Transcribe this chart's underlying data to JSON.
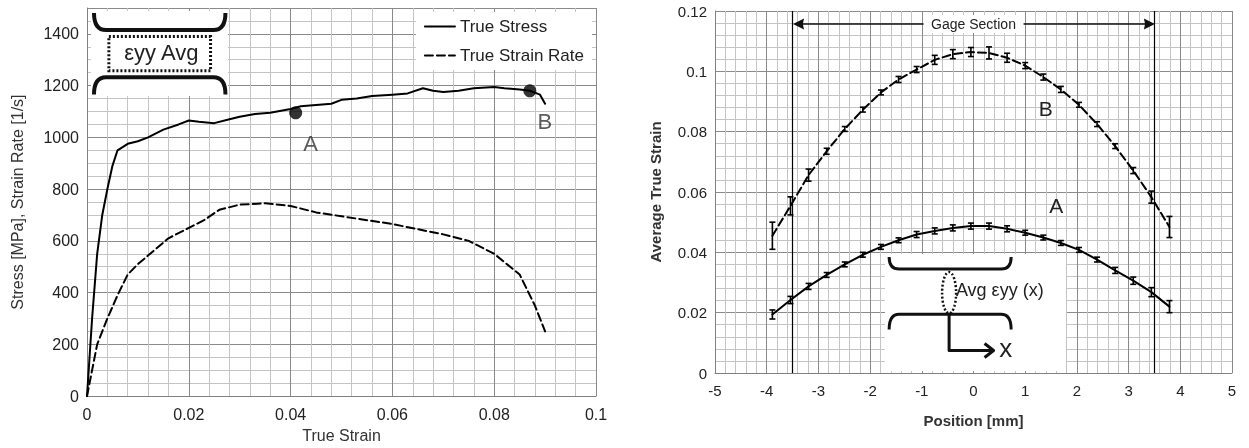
{
  "chart_data": [
    {
      "type": "line",
      "xlabel": "True Strain",
      "ylabel": "Stress [MPa], Strain Rate [1/s]",
      "xlim": [
        0,
        0.1
      ],
      "xticks": [
        0,
        0.02,
        0.04,
        0.06,
        0.08,
        0.1
      ],
      "ylim": [
        0,
        1500
      ],
      "yticks": [
        0,
        200,
        400,
        600,
        800,
        1000,
        1200,
        1400
      ],
      "grid": true,
      "legend": "top right",
      "marker": "none",
      "series": [
        {
          "name": "True Stress",
          "color": "#000000",
          "line_style": "solid",
          "x": [
            0,
            0.001,
            0.002,
            0.003,
            0.004,
            0.005,
            0.006,
            0.008,
            0.01,
            0.012,
            0.015,
            0.018,
            0.02,
            0.022,
            0.025,
            0.028,
            0.03,
            0.033,
            0.036,
            0.04,
            0.042,
            0.045,
            0.048,
            0.05,
            0.053,
            0.056,
            0.06,
            0.063,
            0.066,
            0.068,
            0.07,
            0.073,
            0.076,
            0.08,
            0.082,
            0.085,
            0.087,
            0.089,
            0.09
          ],
          "values": [
            0,
            300,
            550,
            700,
            800,
            890,
            950,
            975,
            985,
            1000,
            1030,
            1050,
            1065,
            1060,
            1055,
            1070,
            1080,
            1090,
            1095,
            1110,
            1120,
            1125,
            1130,
            1145,
            1150,
            1160,
            1165,
            1170,
            1190,
            1180,
            1175,
            1180,
            1190,
            1195,
            1190,
            1185,
            1180,
            1165,
            1130
          ]
        },
        {
          "name": "True Strain Rate",
          "color": "#000000",
          "line_style": "dashed",
          "x": [
            0,
            0.001,
            0.002,
            0.004,
            0.006,
            0.008,
            0.01,
            0.013,
            0.016,
            0.02,
            0.023,
            0.026,
            0.03,
            0.035,
            0.04,
            0.045,
            0.05,
            0.055,
            0.06,
            0.065,
            0.07,
            0.075,
            0.08,
            0.085,
            0.088,
            0.09
          ],
          "values": [
            0,
            100,
            200,
            300,
            390,
            470,
            510,
            560,
            610,
            650,
            680,
            720,
            740,
            745,
            735,
            710,
            695,
            680,
            665,
            645,
            625,
            600,
            550,
            470,
            350,
            250
          ]
        },
        {
          "type": "scatter",
          "color": "#000000",
          "marker": "circle",
          "x": [
            0.041,
            0.087
          ],
          "values": [
            1095,
            1180
          ]
        }
      ],
      "annotations": [
        {
          "text": "A",
          "x": 0.041,
          "y": 1095
        },
        {
          "text": "B",
          "x": 0.087,
          "y": 1180
        },
        "εyy Avg"
      ]
    },
    {
      "type": "line",
      "xlabel": "Position [mm]",
      "ylabel": "Average True Strain",
      "xlim": [
        -5,
        5
      ],
      "xticks": [
        -5,
        -4,
        -3,
        -2,
        -1,
        0,
        1,
        2,
        3,
        4,
        5
      ],
      "ylim": [
        0,
        0.12
      ],
      "yticks": [
        0,
        0.02,
        0.04,
        0.06,
        0.08,
        0.1,
        0.12
      ],
      "grid": true,
      "marker": "none",
      "series": [
        {
          "color": "#000000",
          "line_style": "solid",
          "x": [
            -3.89,
            -3.54,
            -3.19,
            -2.84,
            -2.49,
            -2.14,
            -1.79,
            -1.45,
            -1.1,
            -0.75,
            -0.4,
            -0.05,
            0.3,
            0.65,
            1.0,
            1.35,
            1.69,
            2.04,
            2.39,
            2.74,
            3.09,
            3.44,
            3.79
          ],
          "values": [
            0.0194,
            0.0242,
            0.0287,
            0.0325,
            0.036,
            0.0392,
            0.0418,
            0.044,
            0.0459,
            0.0471,
            0.0481,
            0.0487,
            0.0487,
            0.0478,
            0.0465,
            0.0449,
            0.0431,
            0.0408,
            0.0376,
            0.034,
            0.0306,
            0.0268,
            0.022
          ],
          "errors": [
            0.0015,
            0.0012,
            0.001,
            0.0008,
            0.0008,
            0.0008,
            0.0008,
            0.0008,
            0.001,
            0.001,
            0.001,
            0.001,
            0.001,
            0.001,
            0.0008,
            0.0008,
            0.0008,
            0.0008,
            0.0008,
            0.001,
            0.0012,
            0.0015,
            0.002
          ]
        },
        {
          "color": "#000000",
          "line_style": "dashed",
          "x": [
            -3.89,
            -3.54,
            -3.19,
            -2.84,
            -2.49,
            -2.14,
            -1.79,
            -1.45,
            -1.1,
            -0.75,
            -0.4,
            -0.05,
            0.3,
            0.65,
            1.0,
            1.35,
            1.69,
            2.04,
            2.39,
            2.74,
            3.09,
            3.44,
            3.79
          ],
          "values": [
            0.0455,
            0.0554,
            0.0656,
            0.0735,
            0.0809,
            0.0873,
            0.093,
            0.0973,
            0.1006,
            0.1038,
            0.1057,
            0.1064,
            0.1061,
            0.1045,
            0.1019,
            0.0981,
            0.094,
            0.0889,
            0.0825,
            0.0752,
            0.0671,
            0.0583,
            0.0484
          ],
          "errors": [
            0.0045,
            0.003,
            0.002,
            0.001,
            0.0008,
            0.0008,
            0.0008,
            0.001,
            0.001,
            0.0015,
            0.0015,
            0.0015,
            0.002,
            0.0015,
            0.001,
            0.001,
            0.001,
            0.0008,
            0.0008,
            0.0008,
            0.001,
            0.002,
            0.0035
          ]
        }
      ],
      "ref_lines": [
        {
          "axis": "x",
          "value": -3.5,
          "color": "#000000"
        },
        {
          "axis": "x",
          "value": 3.5,
          "color": "#000000"
        }
      ],
      "annotations": [
        "Gage Section",
        "A",
        "B",
        "Avg εyy (x)",
        "x"
      ]
    }
  ]
}
